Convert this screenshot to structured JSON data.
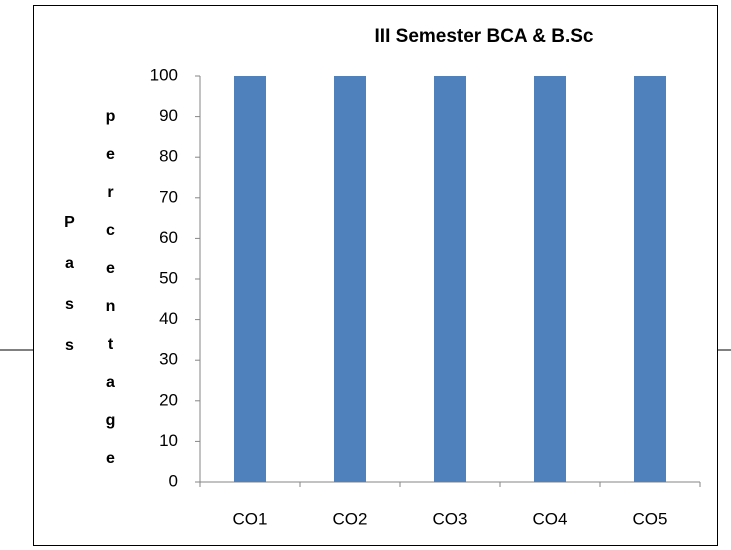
{
  "chart_data": {
    "type": "bar",
    "title": "III Semester BCA & B.Sc",
    "ylabel": [
      "Pass",
      "percentage"
    ],
    "categories": [
      "CO1",
      "CO2",
      "CO3",
      "CO4",
      "CO5"
    ],
    "values": [
      100,
      100,
      100,
      100,
      100
    ],
    "color": "#4f81bd",
    "ylim": [
      0,
      100
    ],
    "yticks": [
      0,
      10,
      20,
      30,
      40,
      50,
      60,
      70,
      80,
      90,
      100
    ],
    "grid": false
  }
}
